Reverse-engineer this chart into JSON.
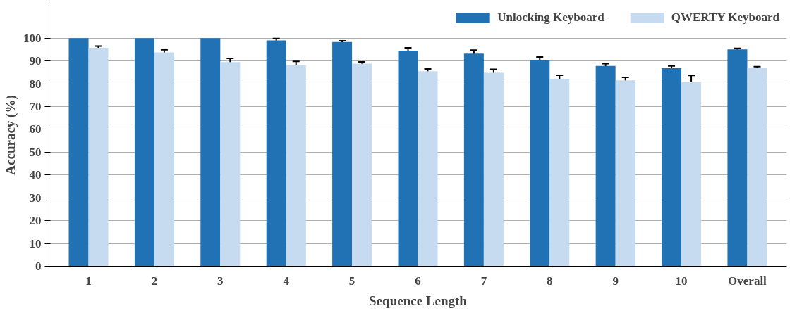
{
  "chart_data": {
    "type": "bar",
    "xlabel": "Sequence Length",
    "ylabel": "Accuracy (%)",
    "categories": [
      "1",
      "2",
      "3",
      "4",
      "5",
      "6",
      "7",
      "8",
      "9",
      "10",
      "Overall"
    ],
    "series": [
      {
        "name": "Unlocking Keyboard",
        "color": "#2171b5",
        "values": [
          100,
          100,
          100,
          99,
          98.3,
          94.5,
          93.2,
          90.2,
          87.8,
          86.8,
          95
        ],
        "errors": [
          null,
          null,
          null,
          0.8,
          0.5,
          1.2,
          1.5,
          1.5,
          1,
          1,
          0.5
        ]
      },
      {
        "name": "QWERTY Keyboard",
        "color": "#c6dbef",
        "values": [
          95.7,
          93.7,
          89.5,
          88.2,
          88.8,
          85.5,
          84.8,
          82.2,
          81.5,
          80.6,
          87
        ],
        "errors": [
          0.8,
          1.2,
          1.6,
          1.6,
          0.8,
          1,
          1.5,
          1.5,
          1.3,
          3,
          0.5
        ]
      }
    ],
    "ylim": [
      0,
      115
    ],
    "yticks": [
      0,
      10,
      20,
      30,
      40,
      50,
      60,
      70,
      80,
      90,
      100
    ],
    "grid": "y",
    "legend": "top right"
  }
}
